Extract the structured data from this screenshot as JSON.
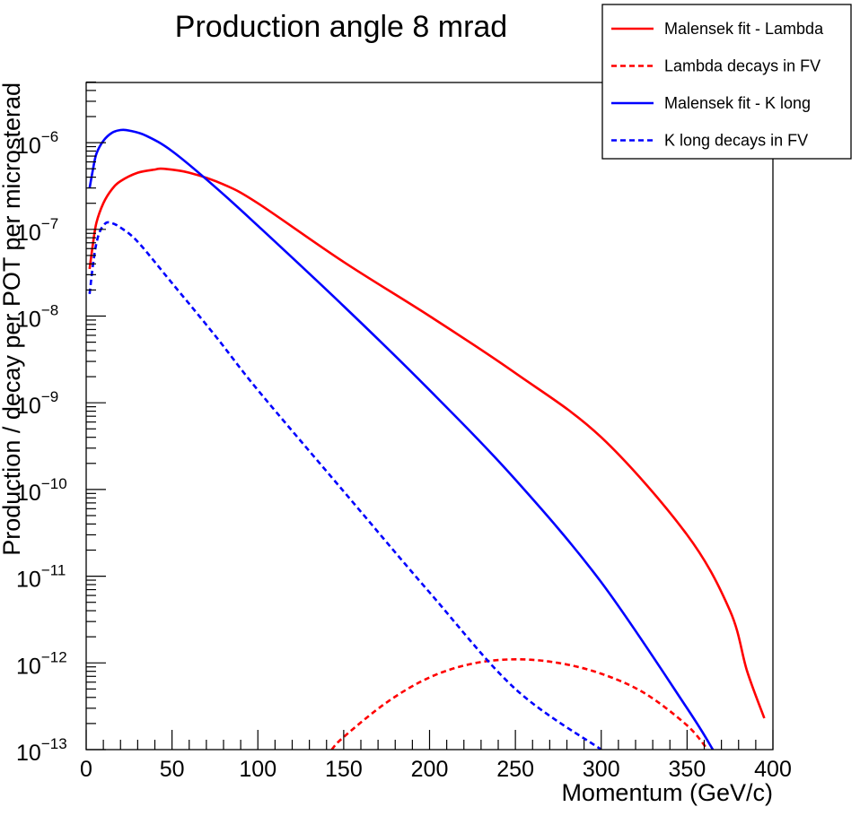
{
  "chart_data": {
    "type": "line",
    "title": "Production angle 8 mrad",
    "xlabel": "Momentum (GeV/c)",
    "ylabel": "Production / decay per POT per microsterad",
    "xlim": [
      0,
      400
    ],
    "ylim": [
      1e-13,
      5e-06
    ],
    "yscale": "log",
    "x_ticks": [
      0,
      50,
      100,
      150,
      200,
      250,
      300,
      350,
      400
    ],
    "y_ticks": [
      {
        "value": 1e-06,
        "base": "10",
        "exponent": "−6"
      },
      {
        "value": 1e-07,
        "base": "10",
        "exponent": "−7"
      },
      {
        "value": 1e-08,
        "base": "10",
        "exponent": "−8"
      },
      {
        "value": 1e-09,
        "base": "10",
        "exponent": "−9"
      },
      {
        "value": 1e-10,
        "base": "10",
        "exponent": "−10"
      },
      {
        "value": 1e-11,
        "base": "10",
        "exponent": "−11"
      },
      {
        "value": 1e-12,
        "base": "10",
        "exponent": "−12"
      },
      {
        "value": 1e-13,
        "base": "10",
        "exponent": "−13"
      }
    ],
    "legend_position": "top-right",
    "series": [
      {
        "name": "Malensek fit - Lambda",
        "color": "#ff0000",
        "style": "solid",
        "x": [
          2,
          4,
          6,
          10,
          15,
          20,
          30,
          40,
          45,
          60,
          80,
          100,
          150,
          200,
          250,
          300,
          350,
          375,
          385,
          395
        ],
        "y": [
          3.5e-08,
          7e-08,
          1.2e-07,
          2e-07,
          2.9e-07,
          3.6e-07,
          4.5e-07,
          4.9e-07,
          5e-07,
          4.5e-07,
          3.3e-07,
          2e-07,
          4.2e-08,
          1e-08,
          2.2e-09,
          4e-10,
          3e-11,
          4e-12,
          8e-13,
          2.3e-13
        ]
      },
      {
        "name": "Lambda decays in FV",
        "color": "#ff0000",
        "style": "dashed",
        "x": [
          143,
          150,
          175,
          200,
          225,
          250,
          275,
          300,
          325,
          350,
          362
        ],
        "y": [
          1e-13,
          1.4e-13,
          3.5e-13,
          6.8e-13,
          9.8e-13,
          1.1e-12,
          1e-12,
          7.5e-13,
          4.5e-13,
          1.9e-13,
          1e-13
        ]
      },
      {
        "name": "Malensek fit - K long",
        "color": "#0000ff",
        "style": "solid",
        "x": [
          2,
          4,
          6,
          10,
          15,
          20,
          25,
          35,
          50,
          75,
          100,
          150,
          200,
          250,
          300,
          350,
          365
        ],
        "y": [
          3e-07,
          5e-07,
          7.5e-07,
          1.05e-06,
          1.3e-06,
          1.4e-06,
          1.38e-06,
          1.2e-06,
          8e-07,
          3.1e-07,
          1.1e-07,
          1.3e-08,
          1.4e-09,
          1.3e-10,
          8.5e-12,
          3e-13,
          1e-13
        ]
      },
      {
        "name": "K long decays in FV",
        "color": "#0000ff",
        "style": "dashed",
        "x": [
          2,
          4,
          6,
          8,
          10,
          12,
          15,
          20,
          30,
          50,
          75,
          100,
          150,
          200,
          250,
          300
        ],
        "y": [
          1.8e-08,
          4e-08,
          7e-08,
          9.5e-08,
          1.1e-07,
          1.2e-07,
          1.18e-07,
          1.05e-07,
          7.2e-08,
          2.4e-08,
          6e-09,
          1.4e-09,
          9.5e-11,
          6.5e-12,
          5e-13,
          1e-13
        ]
      }
    ]
  }
}
